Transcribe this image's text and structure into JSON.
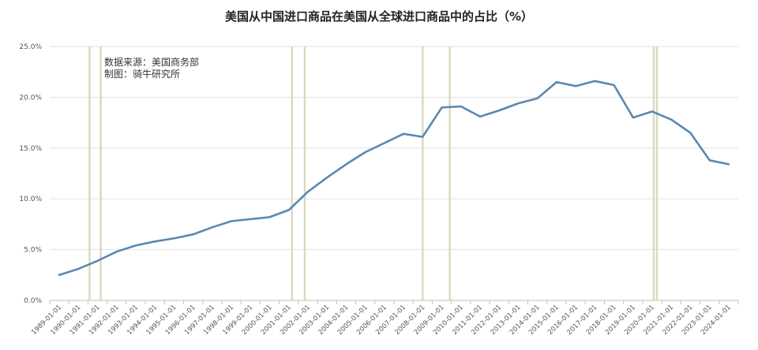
{
  "chart_data": {
    "type": "line",
    "title": "美国从中国进口商品在美国从全球进口商品中的占比（%）",
    "annotations": [
      "数据来源：美国商务部",
      "制图：骑牛研究所"
    ],
    "xlabel": "",
    "ylabel": "",
    "ylim": [
      0,
      25
    ],
    "yticks": [
      "0.0%",
      "5.0%",
      "10.0%",
      "15.0%",
      "20.0%",
      "25.0%"
    ],
    "x": [
      "1989-01-01",
      "1990-01-01",
      "1991-01-01",
      "1992-01-01",
      "1993-01-01",
      "1994-01-01",
      "1995-01-01",
      "1996-01-01",
      "1997-01-01",
      "1998-01-01",
      "1999-01-01",
      "2000-01-01",
      "2001-01-01",
      "2002-01-01",
      "2003-01-01",
      "2004-01-01",
      "2005-01-01",
      "2006-01-01",
      "2007-01-01",
      "2008-01-01",
      "2009-01-01",
      "2010-01-01",
      "2011-01-01",
      "2012-01-01",
      "2013-01-01",
      "2014-01-01",
      "2015-01-01",
      "2016-01-01",
      "2017-01-01",
      "2018-01-01",
      "2019-01-01",
      "2020-01-01",
      "2021-01-01",
      "2022-01-01",
      "2023-01-01",
      "2024-01-01"
    ],
    "series": [
      {
        "values": [
          2.5,
          3.1,
          3.9,
          4.8,
          5.4,
          5.8,
          6.1,
          6.5,
          7.2,
          7.8,
          8.0,
          8.2,
          8.9,
          10.7,
          12.1,
          13.4,
          14.6,
          15.5,
          16.4,
          16.1,
          19.0,
          19.1,
          18.1,
          18.7,
          19.4,
          19.9,
          21.5,
          21.1,
          21.6,
          21.2,
          18.0,
          18.6,
          17.8,
          16.5,
          13.8,
          13.4
        ]
      }
    ],
    "recession_bands": [
      [
        "1990-08-01",
        "1991-03-01"
      ],
      [
        "2001-03-01",
        "2001-11-01"
      ],
      [
        "2008-01-01",
        "2009-06-01"
      ],
      [
        "2020-02-01",
        "2020-04-01"
      ]
    ],
    "line_color": "#5b88b2",
    "band_color": "#d9d9bf",
    "grid": true,
    "legend": false
  }
}
